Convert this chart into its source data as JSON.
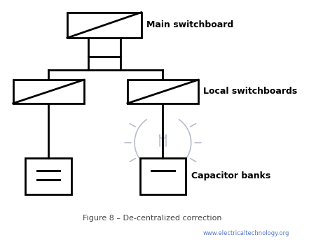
{
  "title": "Figure 8 – De-centralized correction",
  "website": "www.electricaltechnology.org",
  "bg_color": "#ffffff",
  "line_color": "#000000",
  "label_color": "#000000",
  "watermark_color": "#b8bcce",
  "labels": {
    "main_switchboard": "Main switchboard",
    "local_switchboards": "Local switchboards",
    "capacitor_banks": "Capacitor banks"
  },
  "figsize": [
    4.52,
    3.56
  ],
  "dpi": 100
}
